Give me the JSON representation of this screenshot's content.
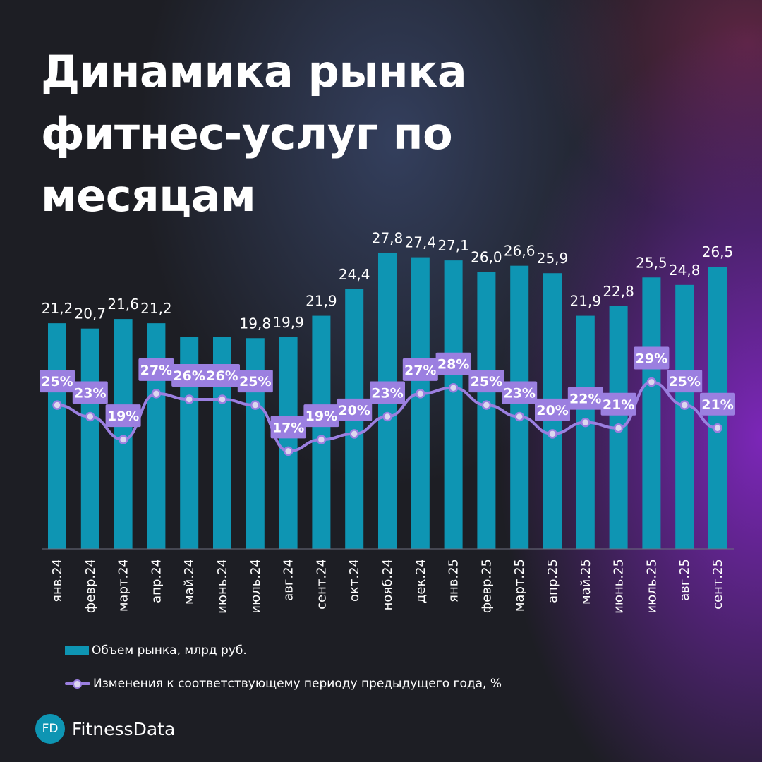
{
  "title": "Динамика рынка фитнес-услуг по месяцам",
  "brand": {
    "logo_text": "FD",
    "name": "FitnessData"
  },
  "colors": {
    "bar": "#0e95b3",
    "line": "#9b7fe0",
    "label_box": "#9b7fe0",
    "point_fill": "#dcd7ef",
    "background": "#1d1e24"
  },
  "chart_data": {
    "type": "bar",
    "categories": [
      "янв.24",
      "февр.24",
      "март.24",
      "апр.24",
      "май.24",
      "июнь.24",
      "июль.24",
      "авг.24",
      "сент.24",
      "окт.24",
      "нояб.24",
      "дек.24",
      "янв.25",
      "февр.25",
      "март.25",
      "апр.25",
      "май.25",
      "июнь.25",
      "июль.25",
      "авг.25",
      "сент.25"
    ],
    "series": [
      {
        "name": "Объем рынка, млрд руб.",
        "type": "bar",
        "values": [
          21.2,
          20.7,
          21.6,
          21.2,
          19.9,
          19.9,
          19.8,
          19.9,
          21.9,
          24.4,
          27.8,
          27.4,
          27.1,
          26.0,
          26.6,
          25.9,
          21.9,
          22.8,
          25.5,
          24.8,
          26.5
        ],
        "value_labels": [
          "21,2",
          "20,7",
          "21,6",
          "21,2",
          "",
          "",
          "19,8",
          "19,9",
          "21,9",
          "24,4",
          "27,8",
          "27,4",
          "27,1",
          "26,0",
          "26,6",
          "25,9",
          "21,9",
          "22,8",
          "25,5",
          "24,8",
          "26,5"
        ]
      },
      {
        "name": "Изменения к соответствующему периоду предыдущего года, %",
        "type": "line",
        "values": [
          25,
          23,
          19,
          27,
          26,
          26,
          25,
          17,
          19,
          20,
          23,
          27,
          28,
          25,
          23,
          20,
          22,
          21,
          29,
          25,
          21
        ],
        "value_labels": [
          "25%",
          "23%",
          "19%",
          "27%",
          "26%",
          "26%",
          "25%",
          "17%",
          "19%",
          "20%",
          "23%",
          "27%",
          "28%",
          "25%",
          "23%",
          "20%",
          "22%",
          "21%",
          "29%",
          "25%",
          "21%"
        ]
      }
    ],
    "xlabel": "",
    "ylabel": "",
    "ylim_bar": [
      0,
      28.5
    ],
    "ylim_line": [
      0,
      39
    ],
    "legend_position": "bottom-left",
    "grid": false
  }
}
